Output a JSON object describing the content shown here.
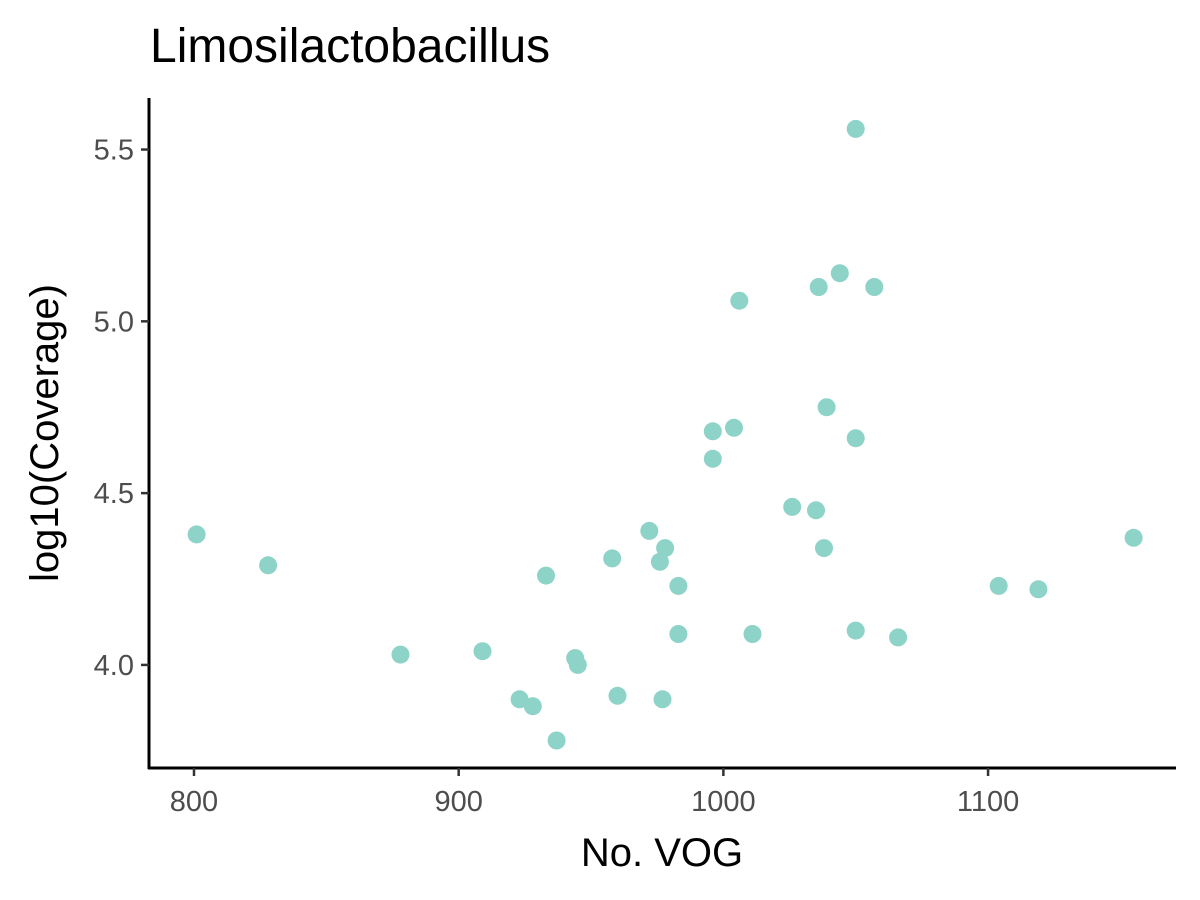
{
  "chart_data": {
    "type": "scatter",
    "title": "Limosilactobacillus",
    "xlabel": "No. VOG",
    "ylabel": "log10(Coverage)",
    "xlim": [
      783,
      1171
    ],
    "ylim": [
      3.7,
      5.65
    ],
    "xticks": [
      800,
      900,
      1000,
      1100
    ],
    "xtick_labels": [
      "800",
      "900",
      "1000",
      "1100"
    ],
    "yticks": [
      4.0,
      4.5,
      5.0,
      5.5
    ],
    "ytick_labels": [
      "4.0",
      "4.5",
      "5.0",
      "5.5"
    ],
    "grid": false,
    "point_color": "#8dd3c7",
    "x": [
      801,
      828,
      878,
      909,
      923,
      928,
      933,
      937,
      944,
      945,
      958,
      960,
      972,
      976,
      977,
      978,
      983,
      983,
      996,
      996,
      1004,
      1006,
      1011,
      1026,
      1035,
      1036,
      1038,
      1039,
      1044,
      1050,
      1050,
      1050,
      1057,
      1066,
      1104,
      1119,
      1155
    ],
    "y": [
      4.38,
      4.29,
      4.03,
      4.04,
      3.9,
      3.88,
      4.26,
      3.78,
      4.02,
      4.0,
      4.31,
      3.91,
      4.39,
      4.3,
      3.9,
      4.34,
      4.23,
      4.09,
      4.68,
      4.6,
      4.69,
      5.06,
      4.09,
      4.46,
      4.45,
      5.1,
      4.34,
      4.75,
      5.14,
      5.56,
      4.66,
      4.1,
      5.1,
      4.08,
      4.23,
      4.22,
      4.37
    ]
  }
}
